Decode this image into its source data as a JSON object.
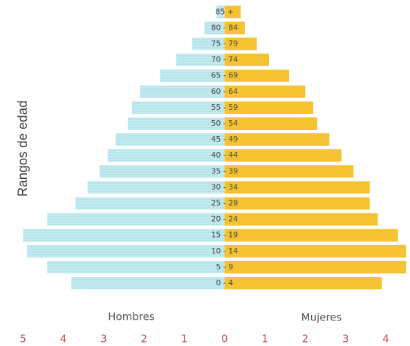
{
  "chart_data": {
    "type": "population-pyramid",
    "y_label": "Rangos de edad",
    "left_label": "Hombres",
    "right_label": "Mujeres",
    "categories": [
      "0 - 4",
      "5 - 9",
      "10 - 14",
      "15 - 19",
      "20 - 24",
      "25 - 29",
      "30 - 34",
      "35 - 39",
      "40 - 44",
      "45 - 49",
      "50 - 54",
      "55 - 59",
      "60 - 64",
      "65 - 69",
      "70 - 74",
      "75 - 79",
      "80 - 84",
      "85 +"
    ],
    "series": [
      {
        "name": "Hombres",
        "color": "#c4eaf0",
        "side": "left",
        "values": [
          3.8,
          4.4,
          4.9,
          5.0,
          4.4,
          3.7,
          3.4,
          3.1,
          2.9,
          2.7,
          2.4,
          2.3,
          2.1,
          1.6,
          1.2,
          0.8,
          0.5,
          0.2
        ]
      },
      {
        "name": "Mujeres",
        "color": "#f5c331",
        "side": "right",
        "values": [
          3.9,
          4.5,
          4.5,
          4.3,
          3.8,
          3.6,
          3.6,
          3.2,
          2.9,
          2.6,
          2.3,
          2.2,
          2.0,
          1.6,
          1.1,
          0.8,
          0.5,
          0.4
        ]
      }
    ],
    "xlim": [
      -5.4,
      4.6
    ],
    "xticks": [
      {
        "value": -5,
        "label": "5"
      },
      {
        "value": -4,
        "label": "4"
      },
      {
        "value": -3,
        "label": "3"
      },
      {
        "value": -2,
        "label": "2"
      },
      {
        "value": -1,
        "label": "1"
      },
      0,
      1,
      2,
      3,
      4
    ]
  }
}
